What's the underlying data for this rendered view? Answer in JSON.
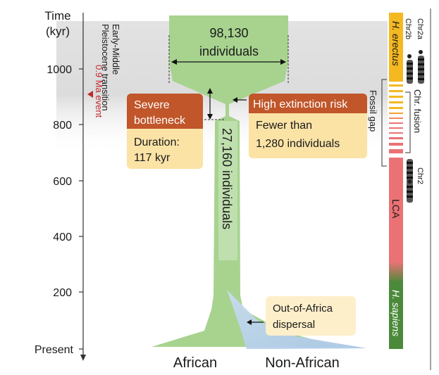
{
  "axis": {
    "title_line1": "Time",
    "title_line2": "(kyr)",
    "ticks": [
      "1000",
      "800",
      "600",
      "400",
      "200",
      "Present"
    ]
  },
  "transition": {
    "line1": "Early-Middle",
    "line2": "Pleistocene transition"
  },
  "event": {
    "line1": "0.9 Ma event"
  },
  "ancestral": {
    "count": "98,130",
    "unit": "individuals"
  },
  "bottleneck_box": {
    "title_line1": "Severe",
    "title_line2": "bottleneck",
    "duration_line1": "Duration:",
    "duration_line2": "117 kyr"
  },
  "risk_box": {
    "title": "High extinction risk",
    "detail_line1": "Fewer than",
    "detail_line2": "1,280 individuals"
  },
  "bottleneck_population": "27,160 individuals",
  "out_of_africa": {
    "line1": "Out-of-Africa",
    "line2": "dispersal"
  },
  "populations": {
    "african": "African",
    "non_african": "Non-African"
  },
  "lineages": {
    "erectus": "H. erectus",
    "lca": "LCA",
    "sapiens": "H. sapiens"
  },
  "fossil_gap": "Fossil gap",
  "chromosomes": {
    "chr2a": "Chr2a",
    "chr2b": "Chr2b",
    "fusion": "Chr. fusion",
    "chr2": "Chr2"
  },
  "colors": {
    "green": "#a7d38f",
    "blue": "#a9c7e6",
    "orange_dark": "#c0562a",
    "yellow_light": "#fbe3a6",
    "erectus": "#f4b821",
    "lca": "#ea7275",
    "sapiens": "#4b8a3a",
    "event_red": "#c0282b",
    "gray_band": "#d9d9d9"
  }
}
